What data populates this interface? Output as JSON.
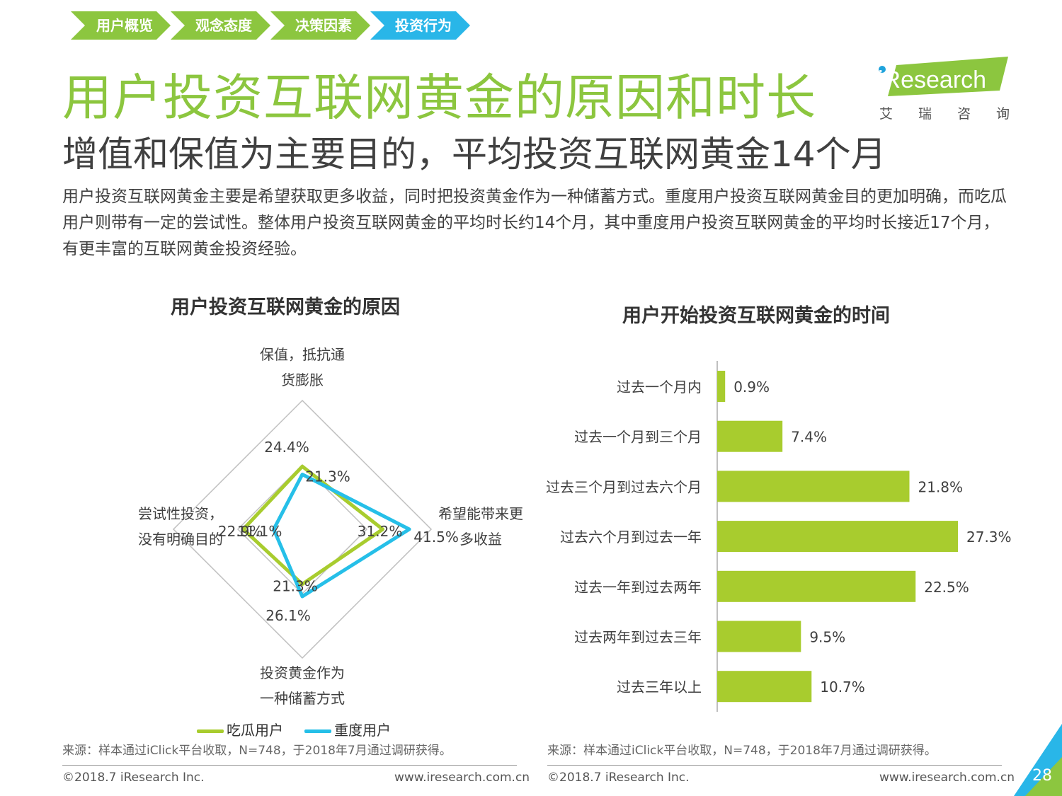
{
  "nav": {
    "items": [
      "用户概览",
      "观念态度",
      "决策因素",
      "投资行为"
    ],
    "active_index": 3,
    "inactive_color": "#8cc63f",
    "active_color": "#29b6e8"
  },
  "title": "用户投资互联网黄金的原因和时长",
  "subtitle": "增值和保值为主要目的，平均投资互联网黄金14个月",
  "body_text": "用户投资互联网黄金主要是希望获取更多收益，同时把投资黄金作为一种储蓄方式。重度用户投资互联网黄金目的更加明确，而吃瓜用户则带有一定的尝试性。整体用户投资互联网黄金的平均时长约14个月，其中重度用户投资互联网黄金的平均时长接近17个月，有更丰富的互联网黄金投资经验。",
  "logo": {
    "brand": "iResearch",
    "sub": "艾瑞咨询",
    "brand_color": "#8cc63f"
  },
  "chart_data": [
    {
      "type": "radar",
      "title": "用户投资互联网黄金的原因",
      "axes": [
        [
          "保值，抵抗通",
          "货膨胀"
        ],
        [
          "希望能带来更",
          "多收益"
        ],
        [
          "投资黄金作为",
          "一种储蓄方式"
        ],
        [
          "尝试性投资，",
          "没有明确目的"
        ]
      ],
      "max": 50,
      "series": [
        {
          "name": "吃瓜用户",
          "color": "#a8cc2e",
          "values": [
            24.4,
            31.2,
            21.3,
            22.9
          ],
          "labels": [
            "24.4%",
            "31.2%",
            "21.3%",
            "22.9%"
          ]
        },
        {
          "name": "重度用户",
          "color": "#26bfe8",
          "values": [
            21.3,
            41.5,
            26.1,
            11.1
          ],
          "labels": [
            "21.3%",
            "41.5%",
            "26.1%",
            "11.1%"
          ]
        }
      ]
    },
    {
      "type": "bar",
      "orientation": "horizontal",
      "title": "用户开始投资互联网黄金的时间",
      "categories": [
        "过去一个月内",
        "过去一个月到三个月",
        "过去三个月到过去六个月",
        "过去六个月到过去一年",
        "过去一年到过去两年",
        "过去两年到过去三年",
        "过去三年以上"
      ],
      "values": [
        0.9,
        7.4,
        21.8,
        27.3,
        22.5,
        9.5,
        10.7
      ],
      "labels": [
        "0.9%",
        "7.4%",
        "21.8%",
        "27.3%",
        "22.5%",
        "9.5%",
        "10.7%"
      ],
      "color": "#a8cc2e",
      "xlim": [
        0,
        27.3
      ]
    }
  ],
  "source_text": "来源：样本通过iClick平台收取，N=748，于2018年7月通过调研获得。",
  "footer": {
    "copyright": "©2018.7 iResearch Inc.",
    "website": "www.iresearch.com.cn",
    "page_number": "28"
  }
}
